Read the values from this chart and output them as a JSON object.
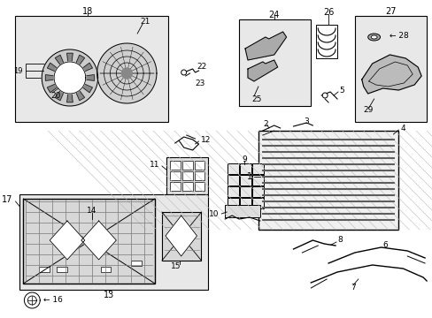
{
  "background_color": "#ffffff",
  "light_gray_fill": "#e8e8e8",
  "figsize": [
    4.89,
    3.6
  ],
  "dpi": 100
}
